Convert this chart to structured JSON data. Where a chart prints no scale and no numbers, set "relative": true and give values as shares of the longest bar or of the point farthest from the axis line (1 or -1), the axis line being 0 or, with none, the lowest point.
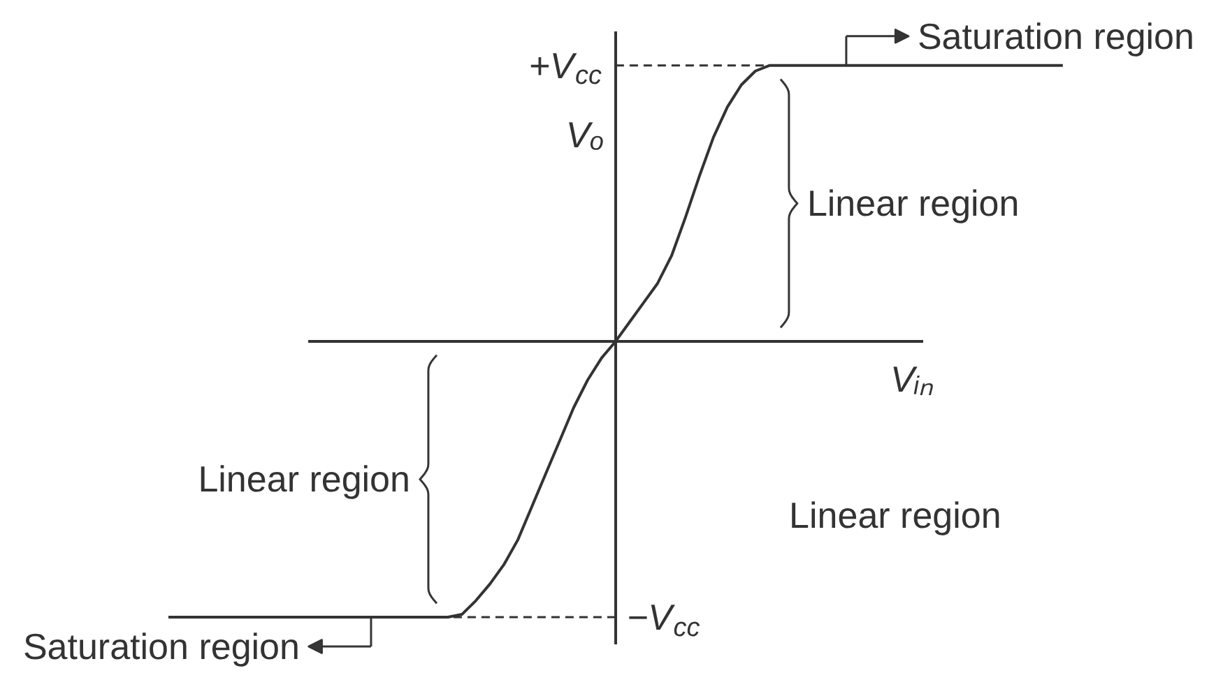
{
  "chart_data": {
    "type": "line",
    "relative": true,
    "xlabel": "Vᵢₙ",
    "ylabel": "Vₒ",
    "categories": [
      null,
      null,
      null,
      null,
      null,
      null,
      null,
      null,
      null,
      null,
      null,
      null,
      null,
      null,
      null,
      null,
      null,
      null,
      null,
      null,
      null,
      null,
      null,
      null,
      null,
      null,
      null,
      null,
      null,
      null,
      null,
      null,
      null,
      null,
      null,
      null,
      null,
      null,
      null,
      null,
      null,
      null,
      null,
      null,
      null,
      null,
      null,
      null,
      null,
      null,
      null,
      null,
      null,
      null,
      null,
      null,
      null,
      null,
      null,
      null,
      null,
      null,
      null,
      null,
      null
    ],
    "series": [
      {
        "color": "#333333",
        "values": [
          -1,
          -1,
          -1,
          -1,
          -1,
          -1,
          -1,
          -1,
          -1,
          -1,
          -1,
          -1,
          -1,
          -1,
          -1,
          -1,
          -1,
          -1,
          -1,
          -1,
          -1,
          -0.99,
          -0.94,
          -0.88,
          -0.81,
          -0.72,
          -0.6,
          -0.48,
          -0.36,
          -0.24,
          -0.14,
          -0.06,
          0,
          0.07,
          0.14,
          0.21,
          0.31,
          0.45,
          0.6,
          0.74,
          0.85,
          0.93,
          0.98,
          1,
          1,
          1,
          1,
          1,
          1,
          1,
          1,
          1,
          1,
          1,
          1,
          1,
          1,
          1,
          1,
          1,
          1,
          1,
          1,
          1,
          1
        ]
      }
    ],
    "line_style": "solid",
    "ref_lines": [
      {
        "axis": "y",
        "value": 1,
        "label": "+V$_{cc}$",
        "line_style": "dashed",
        "color": "#333333"
      },
      {
        "axis": "y",
        "value": -1,
        "label": "−V$_{cc}$",
        "line_style": "dashed",
        "color": "#333333"
      }
    ],
    "annotations": [
      "Saturation region",
      "Linear region",
      "Linear region",
      "Linear region",
      "Saturation region"
    ]
  }
}
